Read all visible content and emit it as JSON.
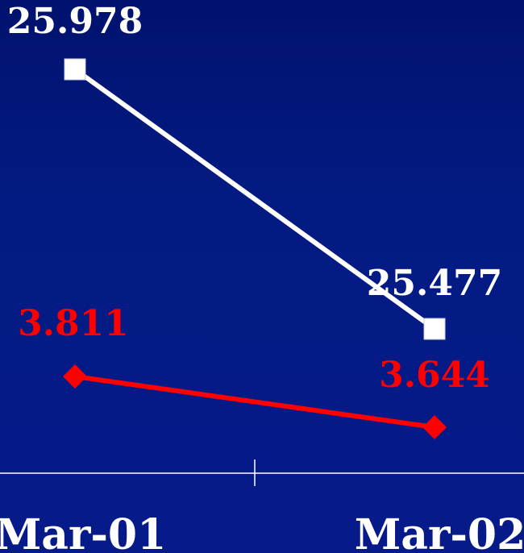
{
  "chart_data": {
    "type": "line",
    "categories": [
      "Mar-01",
      "Mar-02"
    ],
    "series": [
      {
        "values": [
          25.978,
          25.477
        ],
        "labels": [
          "25.978",
          "25.477"
        ],
        "color": "#ffffff",
        "marker": "square"
      },
      {
        "values": [
          3.811,
          3.644
        ],
        "labels": [
          "3.811",
          "3.644"
        ],
        "color": "#ff0000",
        "marker": "diamond"
      }
    ],
    "grid": false,
    "legend": "none"
  }
}
